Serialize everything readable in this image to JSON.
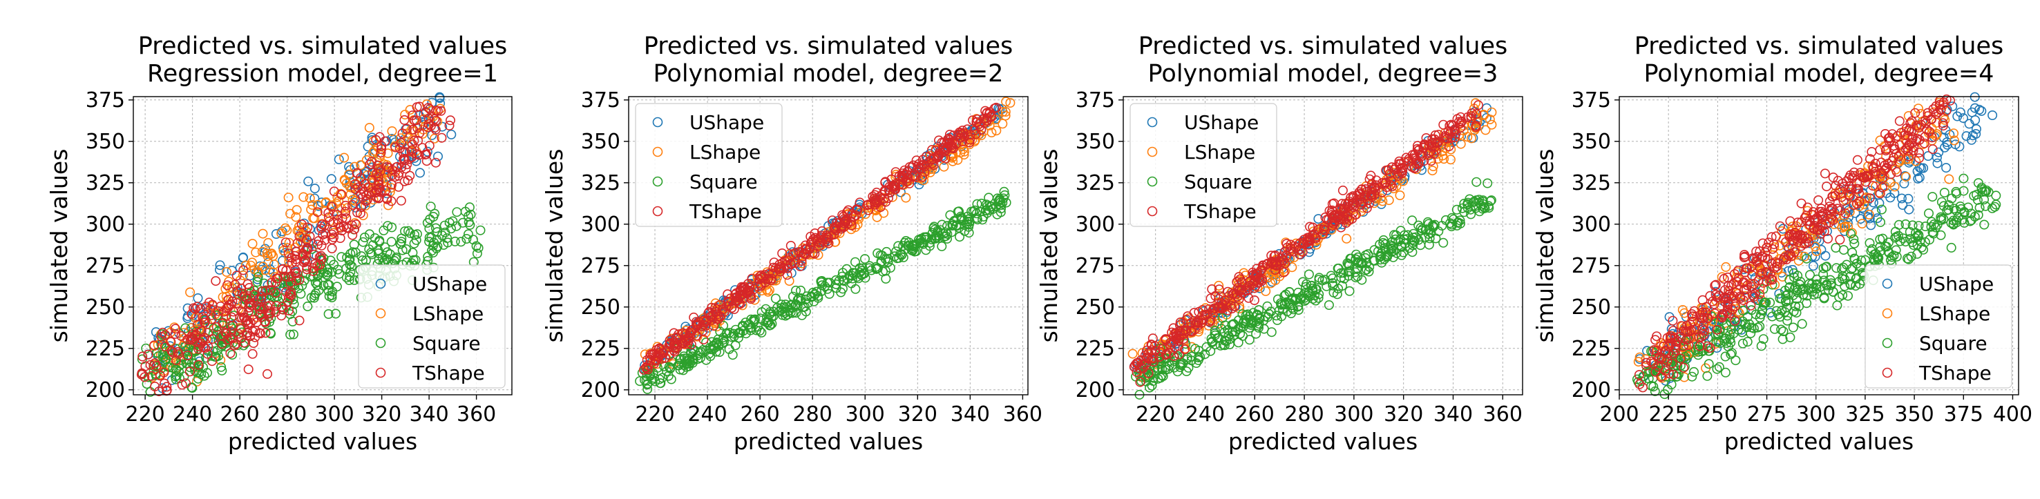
{
  "colors": {
    "UShape": "#1f77b4",
    "LShape": "#ff7f0e",
    "Square": "#2ca02c",
    "TShape": "#d62728"
  },
  "chart_data": [
    {
      "type": "scatter",
      "title": "Predicted vs. simulated values\nRegression model, degree=1",
      "xlabel": "predicted values",
      "ylabel": "simulated values",
      "xlim": [
        215,
        375
      ],
      "ylim": [
        197,
        377
      ],
      "xticks": [
        220,
        240,
        260,
        280,
        300,
        320,
        340,
        360
      ],
      "yticks": [
        200,
        225,
        250,
        275,
        300,
        325,
        350,
        375
      ],
      "grid": true,
      "legend": "lower-right",
      "series": [
        {
          "name": "UShape",
          "segments": [
            [
              222,
              213,
              345,
              367
            ]
          ],
          "noise": 11,
          "count": 180
        },
        {
          "name": "LShape",
          "segments": [
            [
              222,
              213,
              345,
              367
            ]
          ],
          "noise": 11,
          "count": 220
        },
        {
          "name": "Square",
          "segments": [
            [
              222,
              207,
              262,
              235
            ],
            [
              262,
              250,
              360,
              300
            ]
          ],
          "noise": 9,
          "count": 380
        },
        {
          "name": "TShape",
          "segments": [
            [
              222,
              213,
              262,
              253
            ],
            [
              258,
              232,
              345,
              365
            ]
          ],
          "noise": 11,
          "count": 400
        }
      ]
    },
    {
      "type": "scatter",
      "title": "Predicted vs. simulated values\nPolynomial model, degree=2",
      "xlabel": "predicted values",
      "ylabel": "simulated values",
      "xlim": [
        210,
        362
      ],
      "ylim": [
        197,
        377
      ],
      "xticks": [
        220,
        240,
        260,
        280,
        300,
        320,
        340,
        360
      ],
      "yticks": [
        200,
        225,
        250,
        275,
        300,
        325,
        350,
        375
      ],
      "grid": true,
      "legend": "upper-left",
      "series": [
        {
          "name": "UShape",
          "segments": [
            [
              215,
              213,
              352,
              368
            ]
          ],
          "noise": 3,
          "count": 180
        },
        {
          "name": "LShape",
          "segments": [
            [
              215,
              213,
              355,
              368
            ]
          ],
          "noise": 3.5,
          "count": 220
        },
        {
          "name": "Square",
          "segments": [
            [
              215,
              205,
              355,
              316
            ]
          ],
          "noise": 3.5,
          "count": 380
        },
        {
          "name": "TShape",
          "segments": [
            [
              215,
              213,
              350,
              368
            ]
          ],
          "noise": 3,
          "count": 400
        }
      ]
    },
    {
      "type": "scatter",
      "title": "Predicted vs. simulated values\nPolynomial model, degree=3",
      "xlabel": "predicted values",
      "ylabel": "simulated values",
      "xlim": [
        207,
        368
      ],
      "ylim": [
        197,
        377
      ],
      "xticks": [
        220,
        240,
        260,
        280,
        300,
        320,
        340,
        360
      ],
      "yticks": [
        200,
        225,
        250,
        275,
        300,
        325,
        350,
        375
      ],
      "grid": true,
      "legend": "upper-left",
      "series": [
        {
          "name": "UShape",
          "segments": [
            [
              212,
              213,
              355,
              368
            ]
          ],
          "noise": 3.5,
          "count": 180
        },
        {
          "name": "LShape",
          "segments": [
            [
              212,
              213,
              355,
              368
            ]
          ],
          "noise": 4.5,
          "count": 220
        },
        {
          "name": "Square",
          "segments": [
            [
              212,
              204,
              355,
              316
            ]
          ],
          "noise": 4.5,
          "count": 380
        },
        {
          "name": "TShape",
          "segments": [
            [
              212,
              213,
              350,
              368
            ]
          ],
          "noise": 4,
          "count": 400
        }
      ]
    },
    {
      "type": "scatter",
      "title": "Predicted vs. simulated values\nPolynomial model, degree=4",
      "xlabel": "predicted values",
      "ylabel": "simulated values",
      "xlim": [
        200,
        403
      ],
      "ylim": [
        197,
        377
      ],
      "xticks": [
        200,
        225,
        250,
        275,
        300,
        325,
        350,
        375,
        400
      ],
      "yticks": [
        200,
        225,
        250,
        275,
        300,
        325,
        350,
        375
      ],
      "grid": true,
      "legend": "lower-right",
      "series": [
        {
          "name": "UShape",
          "segments": [
            [
              212,
              210,
              385,
              368
            ]
          ],
          "noise": 9,
          "count": 180
        },
        {
          "name": "LShape",
          "segments": [
            [
              212,
              210,
              370,
              368
            ]
          ],
          "noise": 9,
          "count": 220
        },
        {
          "name": "Square",
          "segments": [
            [
              212,
              204,
              390,
              318
            ]
          ],
          "noise": 8,
          "count": 380
        },
        {
          "name": "TShape",
          "segments": [
            [
              212,
              210,
              365,
              368
            ]
          ],
          "noise": 8,
          "count": 400
        }
      ]
    }
  ]
}
